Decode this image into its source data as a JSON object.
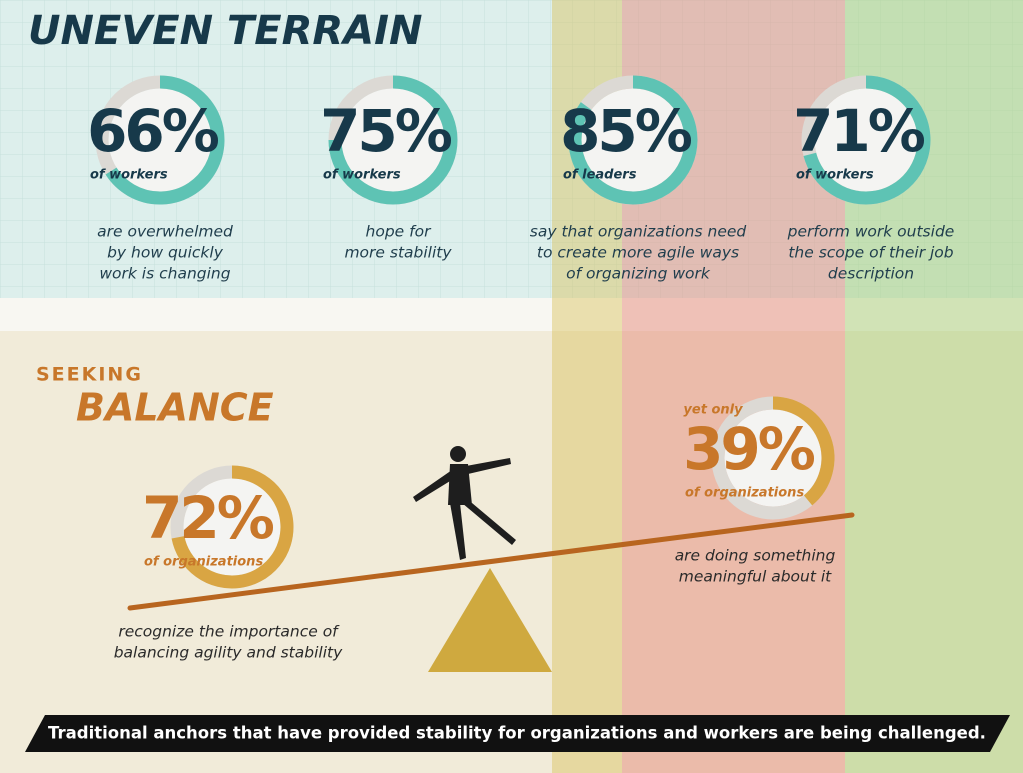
{
  "header": {
    "title": "UNEVEN TERRAIN"
  },
  "stats": [
    {
      "value": 66,
      "label": "66%",
      "group": "of workers",
      "description": [
        "are overwhelmed",
        "by how quickly",
        "work is changing"
      ]
    },
    {
      "value": 75,
      "label": "75%",
      "group": "of workers",
      "description": [
        "hope for",
        "more stability"
      ]
    },
    {
      "value": 85,
      "label": "85%",
      "group": "of leaders",
      "description": [
        "say that organizations need",
        "to create more agile ways",
        "of organizing work"
      ]
    },
    {
      "value": 71,
      "label": "71%",
      "group": "of workers",
      "description": [
        "perform work outside",
        "the scope of their job",
        "description"
      ]
    }
  ],
  "balance": {
    "kicker": "SEEKING",
    "title": "BALANCE",
    "left": {
      "value": 72,
      "label": "72%",
      "group": "of organizations",
      "description": [
        "recognize the importance of",
        "balancing agility and stability"
      ]
    },
    "right": {
      "prefix": "yet only",
      "value": 39,
      "label": "39%",
      "group": "of organizations",
      "description": [
        "are doing something",
        "meaningful about it"
      ]
    }
  },
  "footer": {
    "text": "Traditional anchors that have provided stability for organizations and workers are being challenged."
  }
}
